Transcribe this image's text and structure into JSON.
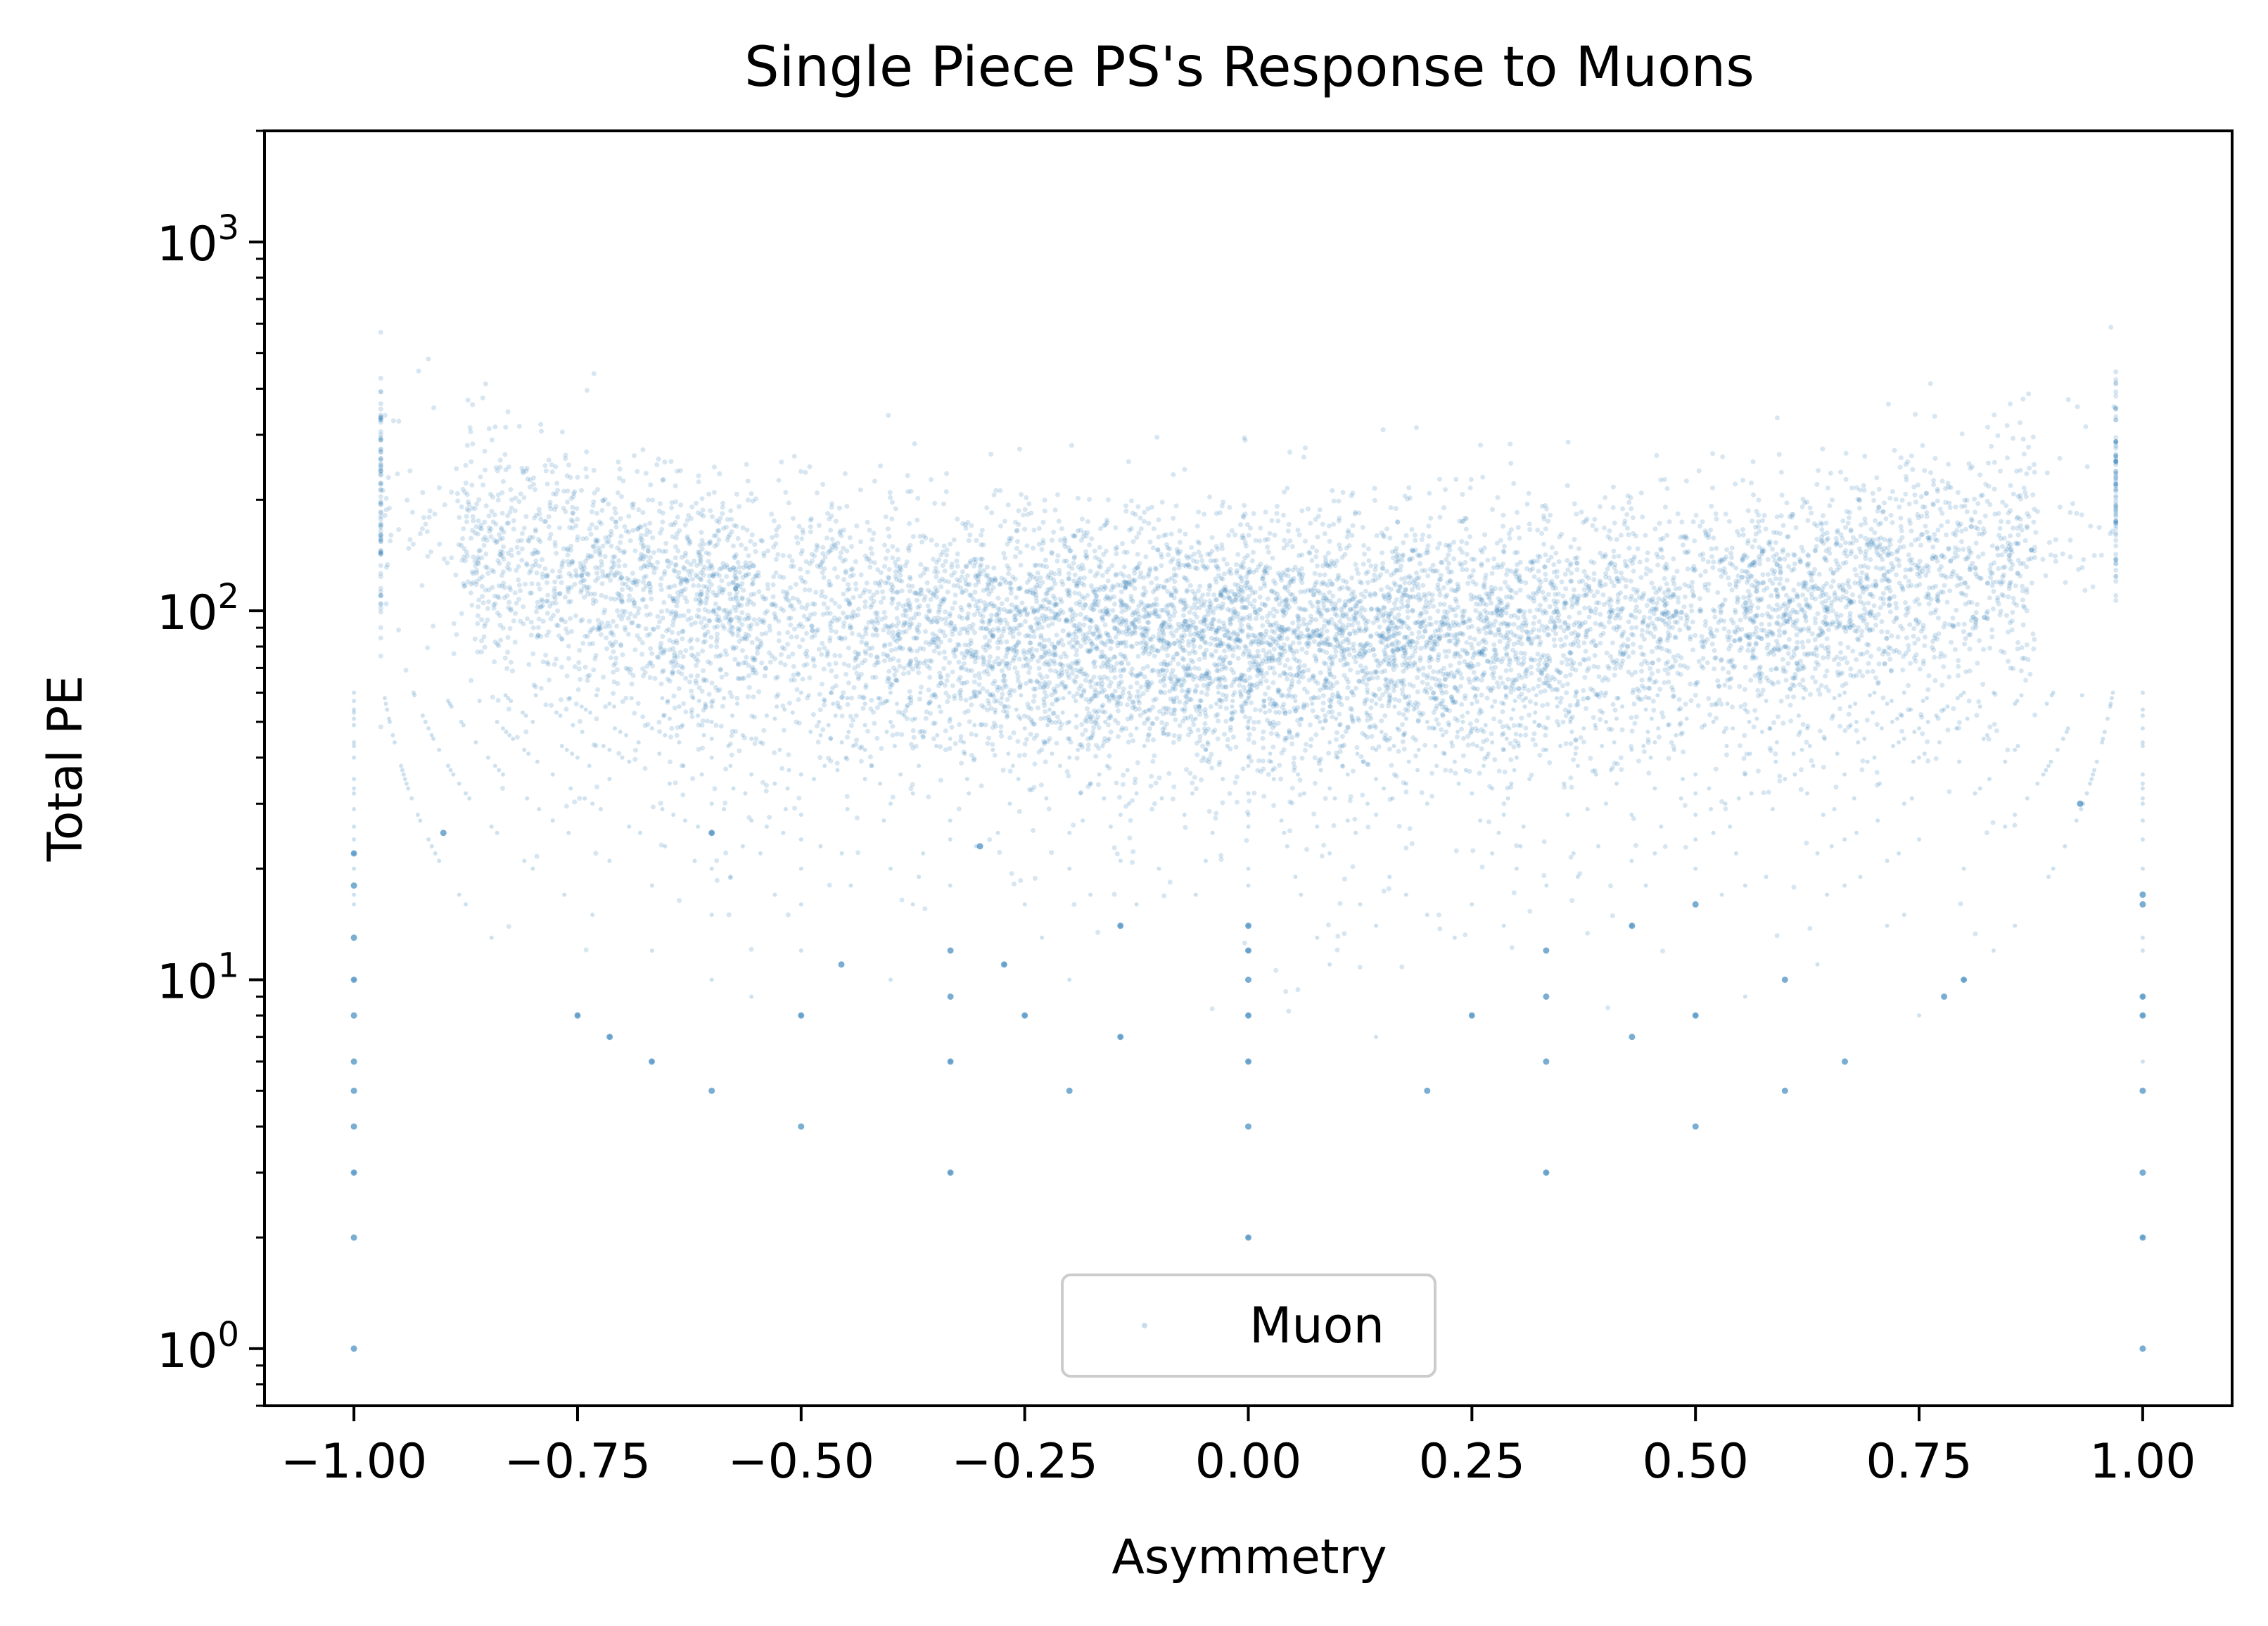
{
  "chart_data": {
    "type": "scatter",
    "title": "Single Piece PS's Response to Muons",
    "xlabel": "Asymmetry",
    "ylabel": "Total PE",
    "xlim": [
      -1.1,
      1.1
    ],
    "ylim": [
      0.7,
      2000
    ],
    "yscale": "log",
    "x_ticks": [
      -1.0,
      -0.75,
      -0.5,
      -0.25,
      0.0,
      0.25,
      0.5,
      0.75,
      1.0
    ],
    "x_tick_labels": [
      "−1.00",
      "−0.75",
      "−0.50",
      "−0.25",
      "0.00",
      "0.25",
      "0.50",
      "0.75",
      "1.00"
    ],
    "y_ticks": [
      {
        "value": 1,
        "base": "10",
        "exp": "0"
      },
      {
        "value": 10,
        "base": "10",
        "exp": "1"
      },
      {
        "value": 100,
        "base": "10",
        "exp": "2"
      },
      {
        "value": 1000,
        "base": "10",
        "exp": "3"
      }
    ],
    "legend": {
      "label": "Muon",
      "position": "lower center"
    },
    "series": [
      {
        "name": "Muon",
        "color": "#1f77b4",
        "description_of_distribution": "dense band around Total PE ~60-150 across asymmetry, rising toward ~300-500 near |asymmetry| ~0.85; discrete low-PE points on rays",
        "discrete_points": [
          {
            "x": -1.0,
            "y": 1
          },
          {
            "x": -1.0,
            "y": 2
          },
          {
            "x": -1.0,
            "y": 3
          },
          {
            "x": -1.0,
            "y": 4
          },
          {
            "x": -1.0,
            "y": 5
          },
          {
            "x": -1.0,
            "y": 6
          },
          {
            "x": -1.0,
            "y": 8
          },
          {
            "x": -1.0,
            "y": 10
          },
          {
            "x": -1.0,
            "y": 13
          },
          {
            "x": -1.0,
            "y": 18
          },
          {
            "x": -1.0,
            "y": 22
          },
          {
            "x": 1.0,
            "y": 1
          },
          {
            "x": 1.0,
            "y": 2
          },
          {
            "x": 1.0,
            "y": 3
          },
          {
            "x": 1.0,
            "y": 5
          },
          {
            "x": 1.0,
            "y": 8
          },
          {
            "x": 1.0,
            "y": 9
          },
          {
            "x": 1.0,
            "y": 16
          },
          {
            "x": 1.0,
            "y": 17
          },
          {
            "x": 0.0,
            "y": 2
          },
          {
            "x": 0.0,
            "y": 4
          },
          {
            "x": 0.0,
            "y": 6
          },
          {
            "x": 0.0,
            "y": 8
          },
          {
            "x": 0.0,
            "y": 10
          },
          {
            "x": 0.0,
            "y": 12
          },
          {
            "x": 0.0,
            "y": 14
          },
          {
            "x": -0.333,
            "y": 3
          },
          {
            "x": -0.333,
            "y": 6
          },
          {
            "x": -0.333,
            "y": 9
          },
          {
            "x": -0.333,
            "y": 12
          },
          {
            "x": 0.333,
            "y": 3
          },
          {
            "x": 0.333,
            "y": 6
          },
          {
            "x": 0.333,
            "y": 9
          },
          {
            "x": 0.333,
            "y": 12
          },
          {
            "x": -0.5,
            "y": 4
          },
          {
            "x": -0.5,
            "y": 8
          },
          {
            "x": 0.5,
            "y": 4
          },
          {
            "x": 0.5,
            "y": 8
          },
          {
            "x": 0.5,
            "y": 16
          },
          {
            "x": -0.6,
            "y": 5
          },
          {
            "x": 0.6,
            "y": 5
          },
          {
            "x": 0.6,
            "y": 10
          },
          {
            "x": -0.2,
            "y": 5
          },
          {
            "x": 0.2,
            "y": 5
          },
          {
            "x": -0.25,
            "y": 8
          },
          {
            "x": 0.25,
            "y": 8
          },
          {
            "x": -0.667,
            "y": 6
          },
          {
            "x": 0.667,
            "y": 6
          },
          {
            "x": -0.143,
            "y": 7
          },
          {
            "x": 0.429,
            "y": 7
          },
          {
            "x": -0.714,
            "y": 7
          },
          {
            "x": -0.75,
            "y": 8
          },
          {
            "x": 0.778,
            "y": 9
          },
          {
            "x": 0.8,
            "y": 10
          },
          {
            "x": -0.455,
            "y": 11
          },
          {
            "x": -0.273,
            "y": 11
          },
          {
            "x": 0.429,
            "y": 14
          },
          {
            "x": -0.143,
            "y": 14
          },
          {
            "x": -0.3,
            "y": 23
          },
          {
            "x": -0.6,
            "y": 25
          },
          {
            "x": -0.9,
            "y": 25
          },
          {
            "x": 0.93,
            "y": 30
          }
        ]
      }
    ]
  }
}
